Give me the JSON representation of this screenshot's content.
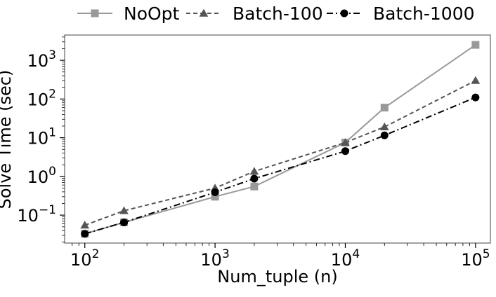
{
  "chart_data": {
    "type": "line",
    "title": "",
    "xlabel": "Num_tuple (n)",
    "ylabel": "Solve Time (sec)",
    "xscale": "log",
    "yscale": "log",
    "xlim": [
      70,
      130000
    ],
    "ylim": [
      0.019,
      4500
    ],
    "grid": false,
    "legend_position": "top",
    "x_tick_labels": [
      {
        "base": "10",
        "exp": "2",
        "value": 100
      },
      {
        "base": "10",
        "exp": "3",
        "value": 1000
      },
      {
        "base": "10",
        "exp": "4",
        "value": 10000
      },
      {
        "base": "10",
        "exp": "5",
        "value": 100000
      }
    ],
    "y_tick_labels": [
      {
        "base": "10",
        "exp": "−1",
        "value": 0.1
      },
      {
        "base": "10",
        "exp": "0",
        "value": 1
      },
      {
        "base": "10",
        "exp": "1",
        "value": 10
      },
      {
        "base": "10",
        "exp": "2",
        "value": 100
      },
      {
        "base": "10",
        "exp": "3",
        "value": 1000
      }
    ],
    "x": [
      100,
      200,
      1000,
      2000,
      10000,
      20000,
      100000
    ],
    "series": [
      {
        "name": "NoOpt",
        "color": "#999999",
        "marker": "square",
        "dash": "solid",
        "values": [
          0.033,
          0.065,
          0.3,
          0.55,
          7.5,
          60,
          2500
        ]
      },
      {
        "name": "Batch-100",
        "color": "#555555",
        "marker": "triangle",
        "dash": "dashed",
        "values": [
          0.055,
          0.13,
          0.5,
          1.35,
          7.5,
          19,
          300
        ]
      },
      {
        "name": "Batch-1000",
        "color": "#000000",
        "marker": "circle",
        "dash": "dashdot",
        "values": [
          0.033,
          0.065,
          0.39,
          0.88,
          4.5,
          11.5,
          110
        ]
      }
    ]
  }
}
